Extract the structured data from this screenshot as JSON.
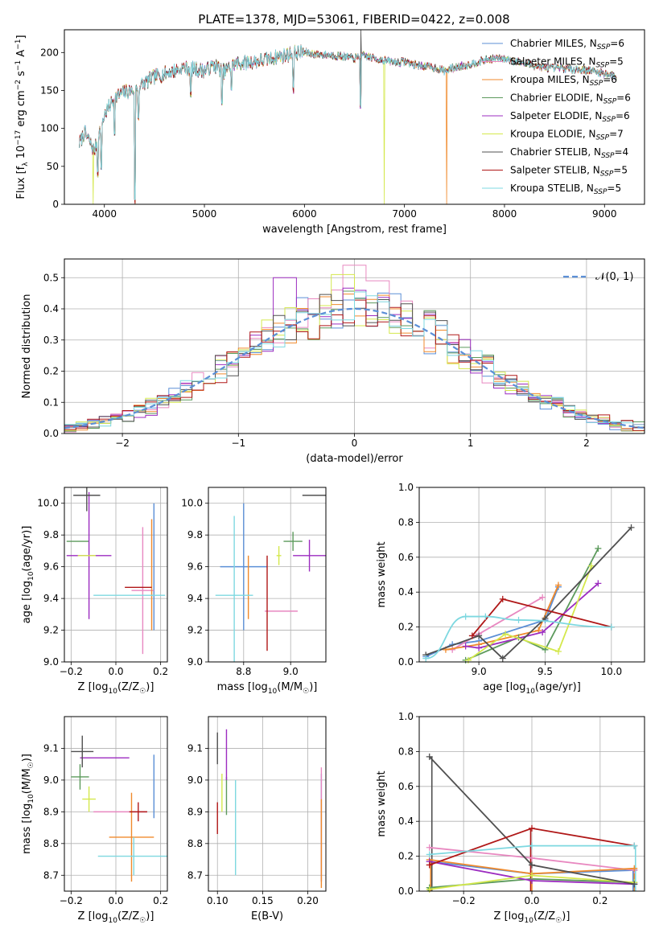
{
  "figure": {
    "title": "PLATE=1378, MJD=53061, FIBERID=0422, z=0.008"
  },
  "colors": {
    "Chabrier MILES": "#5b8fd6",
    "Salpeter MILES": "#e888c0",
    "Kroupa MILES": "#f08a2c",
    "Chabrier ELODIE": "#5c9a5c",
    "Salpeter ELODIE": "#9c2cc0",
    "Kroupa ELODIE": "#d4e84c",
    "Chabrier STELIB": "#505050",
    "Salpeter STELIB": "#b01818",
    "Kroupa STELIB": "#7ed8e0"
  },
  "chart_data": [
    {
      "id": "spectrum",
      "type": "line",
      "xlabel": "wavelength [Angstrom, rest frame]",
      "ylabel": "Flux [f_λ 10^-17 erg cm^-2 s^-1 A^-1]",
      "xlim": [
        3600,
        9400
      ],
      "ylim": [
        0,
        230
      ],
      "xticks": [
        4000,
        5000,
        6000,
        7000,
        8000,
        9000
      ],
      "yticks": [
        0,
        50,
        100,
        150,
        200
      ],
      "grid": false,
      "legend_position": "top-right",
      "legend": [
        {
          "series": "Chabrier MILES",
          "label": "Chabrier MILES, N",
          "sub": "SSP",
          "suffix": "=6"
        },
        {
          "series": "Salpeter MILES",
          "label": "Salpeter MILES, N",
          "sub": "SSP",
          "suffix": "=5"
        },
        {
          "series": "Kroupa MILES",
          "label": "Kroupa MILES, N",
          "sub": "SSP",
          "suffix": "=6"
        },
        {
          "series": "Chabrier ELODIE",
          "label": "Chabrier ELODIE, N",
          "sub": "SSP",
          "suffix": "=6"
        },
        {
          "series": "Salpeter ELODIE",
          "label": "Salpeter ELODIE, N",
          "sub": "SSP",
          "suffix": "=6"
        },
        {
          "series": "Kroupa ELODIE",
          "label": "Kroupa ELODIE, N",
          "sub": "SSP",
          "suffix": "=7"
        },
        {
          "series": "Chabrier STELIB",
          "label": "Chabrier STELIB, N",
          "sub": "SSP",
          "suffix": "=4"
        },
        {
          "series": "Salpeter STELIB",
          "label": "Salpeter STELIB, N",
          "sub": "SSP",
          "suffix": "=5"
        },
        {
          "series": "Kroupa STELIB",
          "label": "Kroupa STELIB, N",
          "sub": "SSP",
          "suffix": "=5"
        }
      ],
      "continuum": {
        "x": [
          3750,
          3800,
          3900,
          4000,
          4100,
          4200,
          4300,
          4400,
          4500,
          4600,
          4700,
          4800,
          4900,
          5000,
          5100,
          5200,
          5300,
          5400,
          5500,
          5600,
          5700,
          5800,
          5900,
          6000,
          6100,
          6200,
          6300,
          6400,
          6500,
          6600,
          6700,
          6800,
          6900,
          7000,
          7100,
          7200,
          7300,
          7400,
          7500,
          7600,
          7700,
          7800,
          7900,
          8000,
          8200,
          8400,
          8600,
          8800,
          9000,
          9120
        ],
        "y": [
          80,
          95,
          70,
          118,
          140,
          148,
          150,
          160,
          168,
          172,
          176,
          180,
          178,
          176,
          183,
          175,
          185,
          187,
          188,
          190,
          194,
          196,
          200,
          200,
          198,
          197,
          196,
          195,
          192,
          196,
          192,
          190,
          187,
          188,
          184,
          182,
          180,
          176,
          180,
          183,
          186,
          190,
          192,
          192,
          186,
          180,
          179,
          177,
          173,
          168
        ]
      },
      "absorption_lines": [
        {
          "x": 3934,
          "y": 35
        },
        {
          "x": 3969,
          "y": 45
        },
        {
          "x": 4102,
          "y": 90
        },
        {
          "x": 4305,
          "y": 0
        },
        {
          "x": 4341,
          "y": 110
        },
        {
          "x": 4861,
          "y": 140
        },
        {
          "x": 5175,
          "y": 130
        },
        {
          "x": 5270,
          "y": 150
        },
        {
          "x": 5890,
          "y": 145
        },
        {
          "x": 6563,
          "y": 125
        }
      ],
      "series_dropouts": [
        {
          "series": "Kroupa ELODIE",
          "x": 3890,
          "y": 0
        },
        {
          "series": "Kroupa ELODIE",
          "x": 6800,
          "y": 0
        },
        {
          "series": "Salpeter MILES",
          "x": 4305,
          "y": 0
        },
        {
          "series": "Kroupa MILES",
          "x": 7420,
          "y": 0
        },
        {
          "series": "Chabrier STELIB",
          "x": 6563,
          "y": 230
        }
      ]
    },
    {
      "id": "residual_histogram",
      "type": "line",
      "xlabel": "(data-model)/error",
      "ylabel": "Normed distribution",
      "xlim": [
        -2.5,
        2.5
      ],
      "ylim": [
        0,
        0.56
      ],
      "xticks": [
        -2,
        -1,
        0,
        1,
        2
      ],
      "yticks": [
        0.0,
        0.1,
        0.2,
        0.3,
        0.4,
        0.5
      ],
      "grid": true,
      "legend_position": "top-right",
      "reference_curve": {
        "label": "𝒩(0, 1)",
        "type": "gaussian",
        "mean": 0,
        "sigma": 1,
        "peak": 0.4
      },
      "bin_width": 0.1,
      "bin_start": -2.5,
      "amplitude_deviations": [
        {
          "series": "Salpeter MILES",
          "x": 0.0,
          "y": 0.54
        },
        {
          "series": "Salpeter ELODIE",
          "x": -0.6,
          "y": 0.5
        },
        {
          "series": "Kroupa ELODIE",
          "x": -0.1,
          "y": 0.51
        },
        {
          "series": "Salpeter MILES",
          "x": 0.2,
          "y": 0.49
        }
      ]
    },
    {
      "id": "age_vs_Z",
      "type": "scatter",
      "xlabel": "Z [log10(Z/Z☉)]",
      "ylabel": "age [log10(age/yr)]",
      "xlim": [
        -0.23,
        0.23
      ],
      "ylim": [
        9.0,
        10.1
      ],
      "xticks": [
        -0.2,
        0.0,
        0.2
      ],
      "yticks": [
        9.0,
        9.2,
        9.4,
        9.6,
        9.8,
        10.0
      ],
      "grid": true,
      "points": [
        {
          "series": "Chabrier MILES",
          "x": 0.17,
          "x_err": 0.0,
          "y": 9.6,
          "y_err": 0.4
        },
        {
          "series": "Salpeter MILES",
          "x": 0.12,
          "x_err": 0.05,
          "y": 9.45,
          "y_err": 0.4
        },
        {
          "series": "Kroupa MILES",
          "x": 0.16,
          "x_err": 0.0,
          "y": 9.55,
          "y_err": 0.35
        },
        {
          "series": "Chabrier ELODIE",
          "x": -0.17,
          "x_err": 0.05,
          "y": 9.76,
          "y_err": 0.0
        },
        {
          "series": "Salpeter ELODIE",
          "x": -0.12,
          "x_err": 0.1,
          "y": 9.67,
          "y_err": 0.4
        },
        {
          "series": "Kroupa ELODIE",
          "x": -0.13,
          "x_err": 0.04,
          "y": 9.67,
          "y_err": 0.0
        },
        {
          "series": "Chabrier STELIB",
          "x": -0.13,
          "x_err": 0.06,
          "y": 10.05,
          "y_err": 0.1
        },
        {
          "series": "Salpeter STELIB",
          "x": 0.1,
          "x_err": 0.06,
          "y": 9.47,
          "y_err": 0.0
        },
        {
          "series": "Kroupa STELIB",
          "x": 0.06,
          "x_err": 0.16,
          "y": 9.42,
          "y_err": 0.0
        }
      ]
    },
    {
      "id": "age_vs_mass",
      "type": "scatter",
      "xlabel": "mass [log10(M/M☉)]",
      "ylabel": "",
      "xlim": [
        8.65,
        9.15
      ],
      "ylim": [
        9.0,
        10.1
      ],
      "xticks": [
        8.8,
        9.0
      ],
      "yticks": [
        9.0,
        9.2,
        9.4,
        9.6,
        9.8,
        10.0
      ],
      "grid": true,
      "points": [
        {
          "series": "Chabrier MILES",
          "x": 8.8,
          "x_err": 0.1,
          "y": 9.6,
          "y_err": 0.4
        },
        {
          "series": "Salpeter MILES",
          "x": 8.96,
          "x_err": 0.07,
          "y": 9.32,
          "y_err": 0.0
        },
        {
          "series": "Kroupa MILES",
          "x": 8.82,
          "x_err": 0.0,
          "y": 9.47,
          "y_err": 0.2
        },
        {
          "series": "Chabrier ELODIE",
          "x": 9.01,
          "x_err": 0.04,
          "y": 9.76,
          "y_err": 0.06
        },
        {
          "series": "Salpeter ELODIE",
          "x": 9.08,
          "x_err": 0.07,
          "y": 9.67,
          "y_err": 0.1
        },
        {
          "series": "Kroupa ELODIE",
          "x": 8.95,
          "x_err": 0.01,
          "y": 9.67,
          "y_err": 0.06
        },
        {
          "series": "Chabrier STELIB",
          "x": 9.1,
          "x_err": 0.05,
          "y": 10.05,
          "y_err": 0.0
        },
        {
          "series": "Salpeter STELIB",
          "x": 8.9,
          "x_err": 0.0,
          "y": 9.37,
          "y_err": 0.3
        },
        {
          "series": "Kroupa STELIB",
          "x": 8.76,
          "x_err": 0.08,
          "y": 9.42,
          "y_err": 0.5
        }
      ]
    },
    {
      "id": "weight_vs_age",
      "type": "line",
      "xlabel": "age [log10(age/yr)]",
      "ylabel": "mass weight",
      "xlim": [
        8.55,
        10.25
      ],
      "ylim": [
        0.0,
        1.0
      ],
      "xticks": [
        9.0,
        9.5,
        10.0
      ],
      "yticks": [
        0.0,
        0.2,
        0.4,
        0.6,
        0.8,
        1.0
      ],
      "grid": true,
      "series": [
        {
          "name": "Chabrier MILES",
          "x": [
            8.6,
            8.8,
            9.0,
            9.5,
            9.6
          ],
          "y": [
            0.03,
            0.1,
            0.12,
            0.24,
            0.43
          ]
        },
        {
          "name": "Salpeter MILES",
          "x": [
            8.8,
            9.0,
            9.48
          ],
          "y": [
            0.07,
            0.16,
            0.37
          ]
        },
        {
          "name": "Kroupa MILES",
          "x": [
            8.75,
            9.0,
            9.45,
            9.6
          ],
          "y": [
            0.07,
            0.1,
            0.18,
            0.44
          ]
        },
        {
          "name": "Chabrier ELODIE",
          "x": [
            8.9,
            9.3,
            9.5,
            9.9
          ],
          "y": [
            0.01,
            0.14,
            0.07,
            0.65
          ]
        },
        {
          "name": "Salpeter ELODIE",
          "x": [
            8.9,
            9.0,
            9.48,
            9.9
          ],
          "y": [
            0.09,
            0.08,
            0.17,
            0.45
          ]
        },
        {
          "name": "Kroupa ELODIE",
          "x": [
            8.92,
            9.2,
            9.6,
            9.85
          ],
          "y": [
            0.01,
            0.16,
            0.06,
            0.55
          ]
        },
        {
          "name": "Chabrier STELIB",
          "x": [
            8.6,
            9.0,
            9.18,
            9.5,
            10.15
          ],
          "y": [
            0.04,
            0.15,
            0.02,
            0.25,
            0.77
          ]
        },
        {
          "name": "Salpeter STELIB",
          "x": [
            8.95,
            9.18,
            10.0
          ],
          "y": [
            0.15,
            0.36,
            0.2
          ]
        },
        {
          "name": "Kroupa STELIB",
          "x": [
            8.6,
            8.9,
            9.05,
            9.3,
            10.0
          ],
          "y": [
            0.02,
            0.26,
            0.26,
            0.24,
            0.2
          ]
        }
      ]
    },
    {
      "id": "mass_vs_Z",
      "type": "scatter",
      "xlabel": "Z [log10(Z/Z☉)]",
      "ylabel": "mass [log10(M/M☉)]",
      "xlim": [
        -0.23,
        0.23
      ],
      "ylim": [
        8.65,
        9.2
      ],
      "xticks": [
        -0.2,
        0.0,
        0.2
      ],
      "yticks": [
        8.7,
        8.8,
        8.9,
        9.0,
        9.1
      ],
      "grid": true,
      "points": [
        {
          "series": "Chabrier MILES",
          "x": 0.17,
          "x_err": 0.0,
          "y": 8.98,
          "y_err": 0.1
        },
        {
          "series": "Salpeter MILES",
          "x": 0.02,
          "x_err": 0.12,
          "y": 8.9,
          "y_err": 0.0
        },
        {
          "series": "Kroupa MILES",
          "x": 0.07,
          "x_err": 0.1,
          "y": 8.82,
          "y_err": 0.14
        },
        {
          "series": "Chabrier ELODIE",
          "x": -0.16,
          "x_err": 0.04,
          "y": 9.01,
          "y_err": 0.04
        },
        {
          "series": "Salpeter ELODIE",
          "x": -0.05,
          "x_err": 0.11,
          "y": 9.07,
          "y_err": 0.0
        },
        {
          "series": "Kroupa ELODIE",
          "x": -0.12,
          "x_err": 0.03,
          "y": 8.94,
          "y_err": 0.04
        },
        {
          "series": "Chabrier STELIB",
          "x": -0.15,
          "x_err": 0.05,
          "y": 9.09,
          "y_err": 0.05
        },
        {
          "series": "Salpeter STELIB",
          "x": 0.1,
          "x_err": 0.04,
          "y": 8.9,
          "y_err": 0.03
        },
        {
          "series": "Kroupa STELIB",
          "x": 0.08,
          "x_err": 0.16,
          "y": 8.76,
          "y_err": 0.06
        }
      ]
    },
    {
      "id": "mass_vs_ebv",
      "type": "scatter",
      "xlabel": "E(B-V)",
      "ylabel": "",
      "xlim": [
        0.09,
        0.22
      ],
      "ylim": [
        8.65,
        9.2
      ],
      "xticks": [
        0.1,
        0.15,
        0.2
      ],
      "yticks": [
        8.7,
        8.8,
        8.9,
        9.0,
        9.1
      ],
      "grid": true,
      "points": [
        {
          "series": "Chabrier MILES",
          "x": 0.215,
          "x_err": 0.0,
          "y": 8.85,
          "y_err": 0.17
        },
        {
          "series": "Salpeter MILES",
          "x": 0.215,
          "x_err": 0.0,
          "y": 8.86,
          "y_err": 0.18
        },
        {
          "series": "Kroupa MILES",
          "x": 0.215,
          "x_err": 0.0,
          "y": 8.8,
          "y_err": 0.14
        },
        {
          "series": "Chabrier ELODIE",
          "x": 0.11,
          "x_err": 0.0,
          "y": 8.95,
          "y_err": 0.06
        },
        {
          "series": "Salpeter ELODIE",
          "x": 0.11,
          "x_err": 0.0,
          "y": 9.08,
          "y_err": 0.08
        },
        {
          "series": "Kroupa ELODIE",
          "x": 0.105,
          "x_err": 0.0,
          "y": 8.96,
          "y_err": 0.06
        },
        {
          "series": "Chabrier STELIB",
          "x": 0.1,
          "x_err": 0.0,
          "y": 9.1,
          "y_err": 0.05
        },
        {
          "series": "Salpeter STELIB",
          "x": 0.1,
          "x_err": 0.0,
          "y": 8.88,
          "y_err": 0.05
        },
        {
          "series": "Kroupa STELIB",
          "x": 0.12,
          "x_err": 0.0,
          "y": 8.85,
          "y_err": 0.15
        }
      ]
    },
    {
      "id": "weight_vs_Z",
      "type": "line",
      "xlabel": "Z [log10(Z/Z☉)]",
      "ylabel": "mass weight",
      "xlim": [
        -0.33,
        0.33
      ],
      "ylim": [
        0.0,
        1.0
      ],
      "xticks": [
        -0.2,
        0.0,
        0.2
      ],
      "yticks": [
        0.0,
        0.2,
        0.4,
        0.6,
        0.8,
        1.0
      ],
      "grid": true,
      "series": [
        {
          "name": "Chabrier MILES",
          "x": [
            -0.3,
            0.0,
            0.3
          ],
          "y": [
            0.17,
            0.1,
            0.12
          ]
        },
        {
          "name": "Salpeter MILES",
          "x": [
            -0.3,
            0.0,
            0.3
          ],
          "y": [
            0.25,
            0.19,
            0.12
          ]
        },
        {
          "name": "Kroupa MILES",
          "x": [
            -0.3,
            0.0,
            0.3
          ],
          "y": [
            0.18,
            0.1,
            0.13
          ]
        },
        {
          "name": "Chabrier ELODIE",
          "x": [
            -0.3,
            0.0,
            0.3
          ],
          "y": [
            0.02,
            0.07,
            0.05
          ]
        },
        {
          "name": "Salpeter ELODIE",
          "x": [
            -0.3,
            0.0,
            0.3
          ],
          "y": [
            0.17,
            0.06,
            0.04
          ]
        },
        {
          "name": "Kroupa ELODIE",
          "x": [
            -0.3,
            0.0,
            0.3
          ],
          "y": [
            0.01,
            0.09,
            0.05
          ]
        },
        {
          "name": "Chabrier STELIB",
          "x": [
            -0.3,
            0.0,
            0.3
          ],
          "y": [
            0.77,
            0.15,
            0.04
          ]
        },
        {
          "name": "Salpeter STELIB",
          "x": [
            -0.3,
            0.0,
            0.3
          ],
          "y": [
            0.15,
            0.36,
            0.26
          ]
        },
        {
          "name": "Kroupa STELIB",
          "x": [
            -0.3,
            0.0,
            0.3
          ],
          "y": [
            0.21,
            0.26,
            0.26
          ]
        }
      ],
      "vertical_spreads": [
        {
          "x": -0.3,
          "series": [
            "Chabrier ELODIE",
            "Kroupa ELODIE",
            "Kroupa MILES",
            "Chabrier STELIB"
          ]
        },
        {
          "x": 0.0,
          "series": [
            "Salpeter STELIB",
            "Kroupa MILES"
          ]
        },
        {
          "x": 0.3,
          "series": [
            "Chabrier MILES",
            "Kroupa MILES",
            "Kroupa STELIB"
          ]
        }
      ]
    }
  ]
}
